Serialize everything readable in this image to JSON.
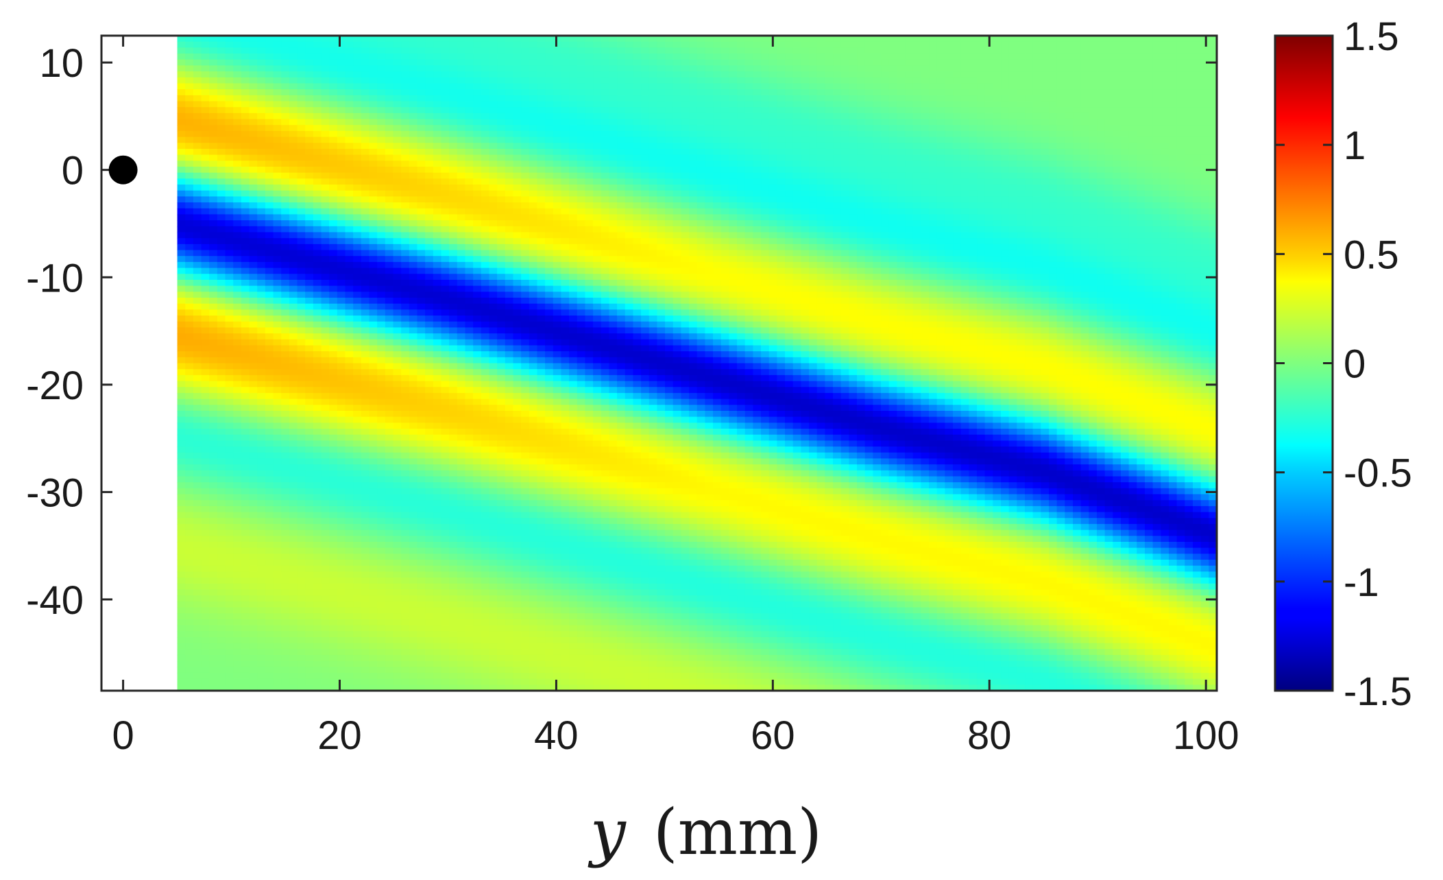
{
  "chart_data": {
    "type": "heatmap",
    "title": "",
    "xlabel": "y (mm)",
    "xlabel_var": "y",
    "xlabel_unit": "(mm)",
    "ylabel": "",
    "xlim": [
      -2,
      101
    ],
    "ylim": [
      -48.5,
      12.5
    ],
    "x_ticks": [
      0,
      20,
      40,
      60,
      80,
      100
    ],
    "x_tick_labels": [
      "0",
      "20",
      "40",
      "60",
      "80",
      "100"
    ],
    "y_ticks": [
      10,
      0,
      -10,
      -20,
      -30,
      -40
    ],
    "y_tick_labels": [
      "10",
      "0",
      "-10",
      "-20",
      "-30",
      "-40"
    ],
    "data_x_range": [
      5,
      101
    ],
    "colormap": "jet",
    "color_range": [
      -1.5,
      1.5
    ],
    "colorbar_ticks": [
      1.5,
      1,
      0.5,
      0,
      -0.5,
      -1,
      -1.5
    ],
    "colorbar_tick_labels": [
      "1.5",
      "1",
      "0.5",
      "0",
      "-0.5",
      "-1",
      "-1.5"
    ],
    "grid": false,
    "marker": {
      "x": 0,
      "y": 0,
      "color": "#000000"
    },
    "field_description": {
      "main_band": {
        "center_at_x": [
          [
            5,
            -5
          ],
          [
            30,
            -12
          ],
          [
            50,
            -18
          ],
          [
            70,
            -24
          ],
          [
            85,
            -28
          ],
          [
            101,
            -34
          ]
        ],
        "peak_value": -1.35
      },
      "positive_lobes": [
        {
          "center_at_x": [
            [
              5,
              4
            ],
            [
              101,
              -18
            ]
          ],
          "peak_value": 0.75
        },
        {
          "center_at_x": [
            [
              5,
              -14
            ],
            [
              101,
              -44
            ]
          ],
          "peak_value": 0.75
        }
      ]
    }
  }
}
